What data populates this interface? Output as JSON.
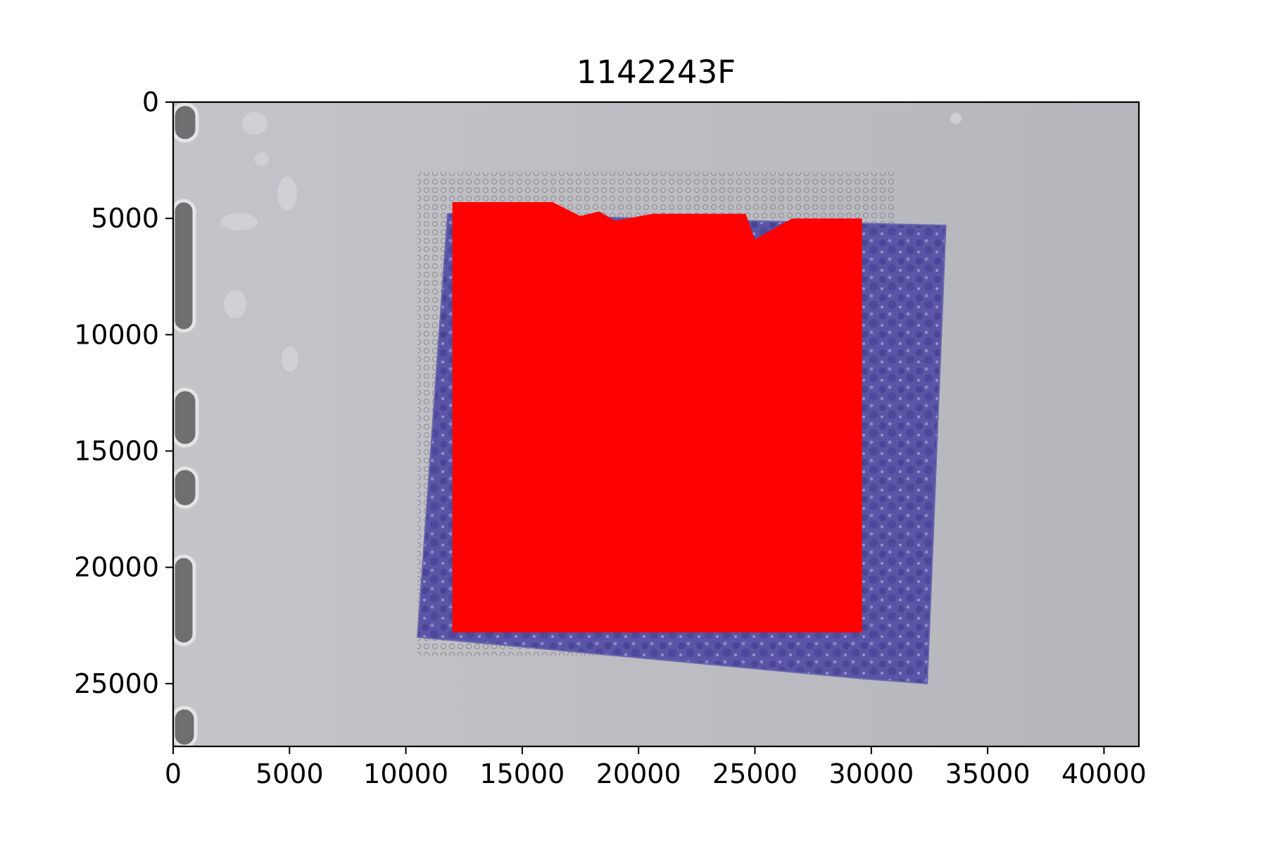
{
  "chart_data": {
    "type": "scatter",
    "title": "1142243F",
    "xlabel": "",
    "ylabel": "",
    "xlim": [
      0,
      41500
    ],
    "ylim": [
      27700,
      0
    ],
    "y_inverted": true,
    "grid": false,
    "xticks": [
      0,
      5000,
      10000,
      15000,
      20000,
      25000,
      30000,
      35000,
      40000
    ],
    "xtick_labels": [
      "0",
      "5000",
      "10000",
      "15000",
      "20000",
      "25000",
      "30000",
      "35000",
      "40000"
    ],
    "yticks": [
      0,
      5000,
      10000,
      15000,
      20000,
      25000
    ],
    "ytick_labels": [
      "0",
      "5000",
      "10000",
      "15000",
      "20000",
      "25000"
    ],
    "background": "histology slide image (H&E stained tissue section)",
    "series": [
      {
        "marker_color": "#ff0000",
        "region_outline_xy": [
          [
            12000,
            4300
          ],
          [
            16300,
            4300
          ],
          [
            17500,
            4900
          ],
          [
            18300,
            4700
          ],
          [
            19000,
            5100
          ],
          [
            20600,
            4800
          ],
          [
            24600,
            4800
          ],
          [
            25000,
            5900
          ],
          [
            26600,
            5000
          ],
          [
            29600,
            5000
          ],
          [
            29600,
            22800
          ],
          [
            12000,
            22800
          ]
        ]
      }
    ],
    "unselected_spot_grid": {
      "marker_color": "#888888",
      "x_range": [
        10500,
        31000
      ],
      "y_range": [
        3000,
        23800
      ]
    },
    "tissue_outline_xy": [
      [
        11800,
        4800
      ],
      [
        33200,
        5300
      ],
      [
        32400,
        25000
      ],
      [
        29800,
        24800
      ],
      [
        10500,
        23000
      ]
    ],
    "colors": {
      "slide_background": "#b8b8be",
      "tissue": "#5550a0",
      "selected_spots": "#ff0000"
    }
  }
}
